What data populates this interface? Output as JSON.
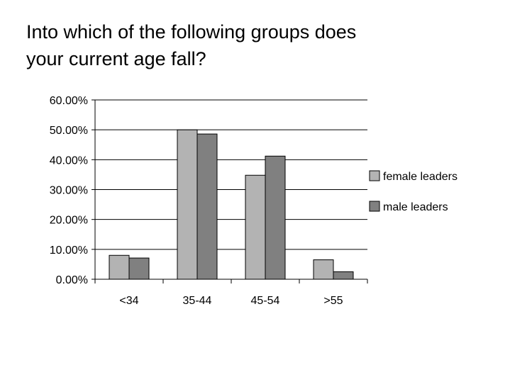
{
  "title_lines": [
    "Into which of the following groups does",
    "your current age fall?"
  ],
  "chart_data": {
    "type": "bar",
    "title": "Into which of the following groups does your current age fall?",
    "categories": [
      "<34",
      "35-44",
      "45-54",
      ">55"
    ],
    "series": [
      {
        "name": "female leaders",
        "values": [
          8.0,
          50.0,
          34.8,
          6.5
        ],
        "color": "#b3b3b3"
      },
      {
        "name": "male leaders",
        "values": [
          7.1,
          48.6,
          41.2,
          2.5
        ],
        "color": "#808080"
      }
    ],
    "ylim": [
      0,
      60
    ],
    "yticks": [
      0,
      10,
      20,
      30,
      40,
      50,
      60
    ],
    "ytick_labels": [
      "0.00%",
      "10.00%",
      "20.00%",
      "30.00%",
      "40.00%",
      "50.00%",
      "60.00%"
    ],
    "grid": true,
    "legend_position": "right"
  }
}
